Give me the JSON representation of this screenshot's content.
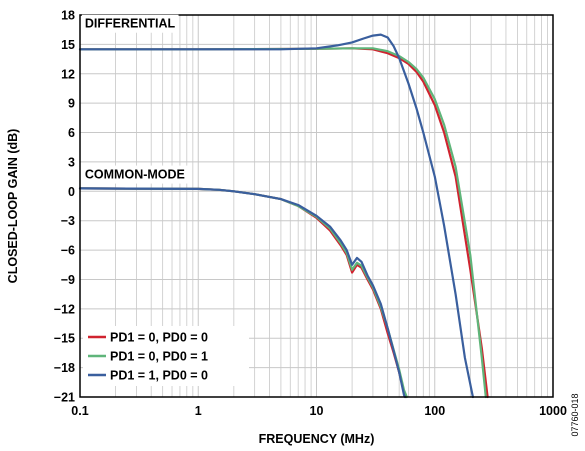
{
  "chart_data": {
    "type": "line",
    "xlabel": "FREQUENCY (MHz)",
    "ylabel": "CLOSED-LOOP GAIN (dB)",
    "x_scale": "log",
    "xlim": [
      0.1,
      1000
    ],
    "ylim": [
      -21,
      18
    ],
    "x_ticks": [
      0.1,
      1,
      10,
      100,
      1000
    ],
    "x_tick_labels": [
      "0.1",
      "1",
      "10",
      "100",
      "1000"
    ],
    "y_ticks": [
      18,
      15,
      12,
      9,
      6,
      3,
      0,
      -3,
      -6,
      -9,
      -12,
      -15,
      -18,
      -21
    ],
    "y_tick_labels": [
      "18",
      "15",
      "12",
      "9",
      "6",
      "3",
      "0",
      "−3",
      "−6",
      "−9",
      "−12",
      "−15",
      "−18",
      "−21"
    ],
    "grid": true,
    "legend_position": "bottom-left",
    "annotations": [
      {
        "text": "DIFFERENTIAL",
        "x": 0.11,
        "y": 16.7
      },
      {
        "text": "COMMON-MODE",
        "x": 0.11,
        "y": 1.3
      }
    ],
    "figure_id": "07760-018",
    "series": [
      {
        "name": "PD1 = 0, PD0 = 0",
        "color": "#d0232f",
        "groups": [
          {
            "label": "differential",
            "x": [
              0.1,
              1,
              10,
              20,
              30,
              40,
              50,
              60,
              70,
              80,
              100,
              120,
              150,
              200,
              250,
              280
            ],
            "y": [
              14.5,
              14.5,
              14.55,
              14.6,
              14.5,
              14.1,
              13.6,
              13.0,
              12.2,
              11.2,
              8.8,
              6.0,
              1.5,
              -8.0,
              -16.0,
              -21.0
            ]
          },
          {
            "label": "common-mode",
            "x": [
              0.1,
              1,
              1.5,
              2,
              3,
              5,
              7,
              10,
              13,
              16,
              18,
              20,
              22,
              24,
              27,
              30,
              35,
              40,
              45,
              50,
              55,
              57
            ],
            "y": [
              0.3,
              0.25,
              0.15,
              0.0,
              -0.3,
              -0.8,
              -1.5,
              -2.7,
              -4.0,
              -5.5,
              -6.5,
              -8.3,
              -7.5,
              -7.8,
              -9.0,
              -10.0,
              -12.0,
              -14.5,
              -16.5,
              -18.5,
              -20.5,
              -21.0
            ]
          }
        ]
      },
      {
        "name": "PD1 = 0, PD0 = 1",
        "color": "#5fb57a",
        "groups": [
          {
            "label": "differential",
            "x": [
              0.1,
              1,
              10,
              20,
              30,
              40,
              50,
              60,
              70,
              80,
              100,
              120,
              150,
              200,
              250,
              270
            ],
            "y": [
              14.5,
              14.5,
              14.55,
              14.6,
              14.6,
              14.3,
              13.8,
              13.2,
              12.5,
              11.6,
              9.4,
              6.8,
              2.5,
              -6.5,
              -17.0,
              -21.0
            ]
          },
          {
            "label": "common-mode",
            "x": [
              0.1,
              1,
              1.5,
              2,
              3,
              5,
              7,
              10,
              13,
              16,
              18,
              20,
              22,
              24,
              27,
              30,
              35,
              40,
              45,
              50,
              55,
              58
            ],
            "y": [
              0.3,
              0.25,
              0.15,
              0.0,
              -0.3,
              -0.8,
              -1.5,
              -2.6,
              -3.8,
              -5.3,
              -6.3,
              -8.0,
              -7.3,
              -7.6,
              -8.8,
              -9.8,
              -11.8,
              -14.0,
              -16.2,
              -18.2,
              -20.3,
              -21.0
            ]
          }
        ]
      },
      {
        "name": "PD1 = 1, PD0 = 0",
        "color": "#3a5f9e",
        "groups": [
          {
            "label": "differential",
            "x": [
              0.1,
              1,
              5,
              10,
              15,
              20,
              25,
              30,
              35,
              40,
              45,
              50,
              60,
              70,
              80,
              100,
              120,
              150,
              180,
              210
            ],
            "y": [
              14.5,
              14.5,
              14.5,
              14.6,
              14.9,
              15.2,
              15.6,
              15.9,
              16.0,
              15.7,
              14.8,
              13.6,
              11.0,
              8.5,
              6.0,
              1.5,
              -3.5,
              -10.5,
              -17.0,
              -21.0
            ]
          },
          {
            "label": "common-mode",
            "x": [
              0.1,
              1,
              1.5,
              2,
              3,
              5,
              7,
              10,
              13,
              16,
              18,
              20,
              22,
              24,
              27,
              30,
              35,
              40,
              45,
              50,
              55,
              56
            ],
            "y": [
              0.3,
              0.25,
              0.15,
              0.0,
              -0.3,
              -0.8,
              -1.4,
              -2.5,
              -3.6,
              -5.0,
              -6.0,
              -7.5,
              -6.8,
              -7.2,
              -8.6,
              -9.6,
              -11.5,
              -14.0,
              -16.3,
              -18.5,
              -20.8,
              -21.0
            ]
          }
        ]
      }
    ]
  }
}
